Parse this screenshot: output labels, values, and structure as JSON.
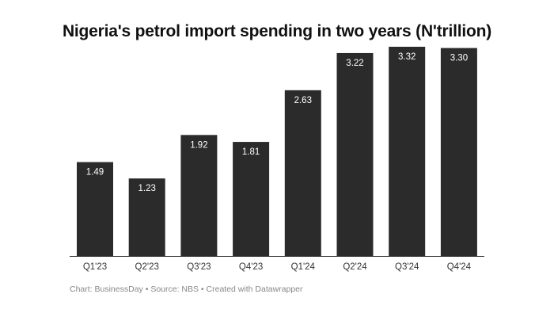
{
  "chart_data": {
    "type": "bar",
    "title": "Nigeria's petrol import spending in two years (N'trillion)",
    "categories": [
      "Q1'23",
      "Q2'23",
      "Q3'23",
      "Q4'23",
      "Q1'24",
      "Q2'24",
      "Q3'24",
      "Q4'24"
    ],
    "values": [
      1.49,
      1.23,
      1.92,
      1.81,
      2.63,
      3.22,
      3.32,
      3.3
    ],
    "data_labels": [
      "1.49",
      "1.23",
      "1.92",
      "1.81",
      "2.63",
      "3.22",
      "3.32",
      "3.30"
    ],
    "xlabel": "",
    "ylabel": "",
    "ylim": [
      0,
      3.32
    ],
    "grid": false,
    "bar_color": "#2b2b2b",
    "label_color": "#ffffff"
  },
  "footer": {
    "chart": "Chart: BusinessDay",
    "source": "Source: NBS",
    "created": "Created with Datawrapper",
    "separator": " • "
  }
}
